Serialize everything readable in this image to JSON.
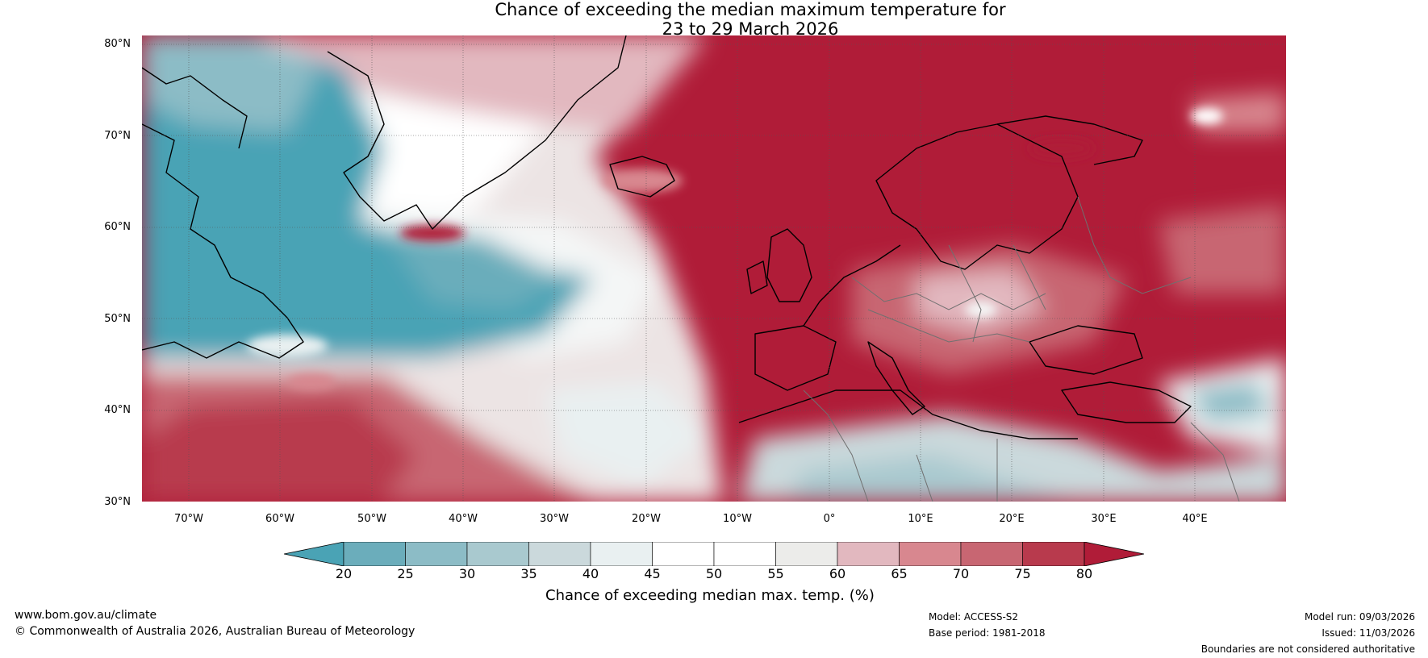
{
  "title": {
    "line1": "Chance of exceeding the median maximum temperature for",
    "line2": "23 to 29 March 2026"
  },
  "map": {
    "lat_labels": [
      "80°N",
      "70°N",
      "60°N",
      "50°N",
      "40°N",
      "30°N"
    ],
    "lon_labels": [
      "70°W",
      "60°W",
      "50°W",
      "40°W",
      "30°W",
      "20°W",
      "10°W",
      "0°",
      "10°E",
      "20°E",
      "30°E",
      "40°E"
    ],
    "lat_range": [
      30,
      80
    ],
    "lon_range": [
      -75,
      50
    ]
  },
  "colorbar": {
    "label": "Chance of exceeding median max. temp. (%)",
    "ticks": [
      "20",
      "25",
      "30",
      "35",
      "40",
      "45",
      "50",
      "55",
      "60",
      "65",
      "70",
      "75",
      "80"
    ],
    "colors": [
      "#4aa3b5",
      "#6badbb",
      "#8cbcc6",
      "#a9c9cf",
      "#cbd9dc",
      "#e9f0f1",
      "#ffffff",
      "#ffffff",
      "#ececea",
      "#e2b8bf",
      "#d8878f",
      "#c86672",
      "#b83a4d",
      "#b01c38"
    ]
  },
  "footer": {
    "website": "www.bom.gov.au/climate",
    "copyright": "© Commonwealth of Australia 2026, Australian Bureau of Meteorology",
    "model": "Model: ACCESS-S2",
    "base_period": "Base period: 1981-2018",
    "model_run": "Model run: 09/03/2026",
    "issued": "Issued: 11/03/2026",
    "disclaimer": "Boundaries are not considered authoritative"
  }
}
